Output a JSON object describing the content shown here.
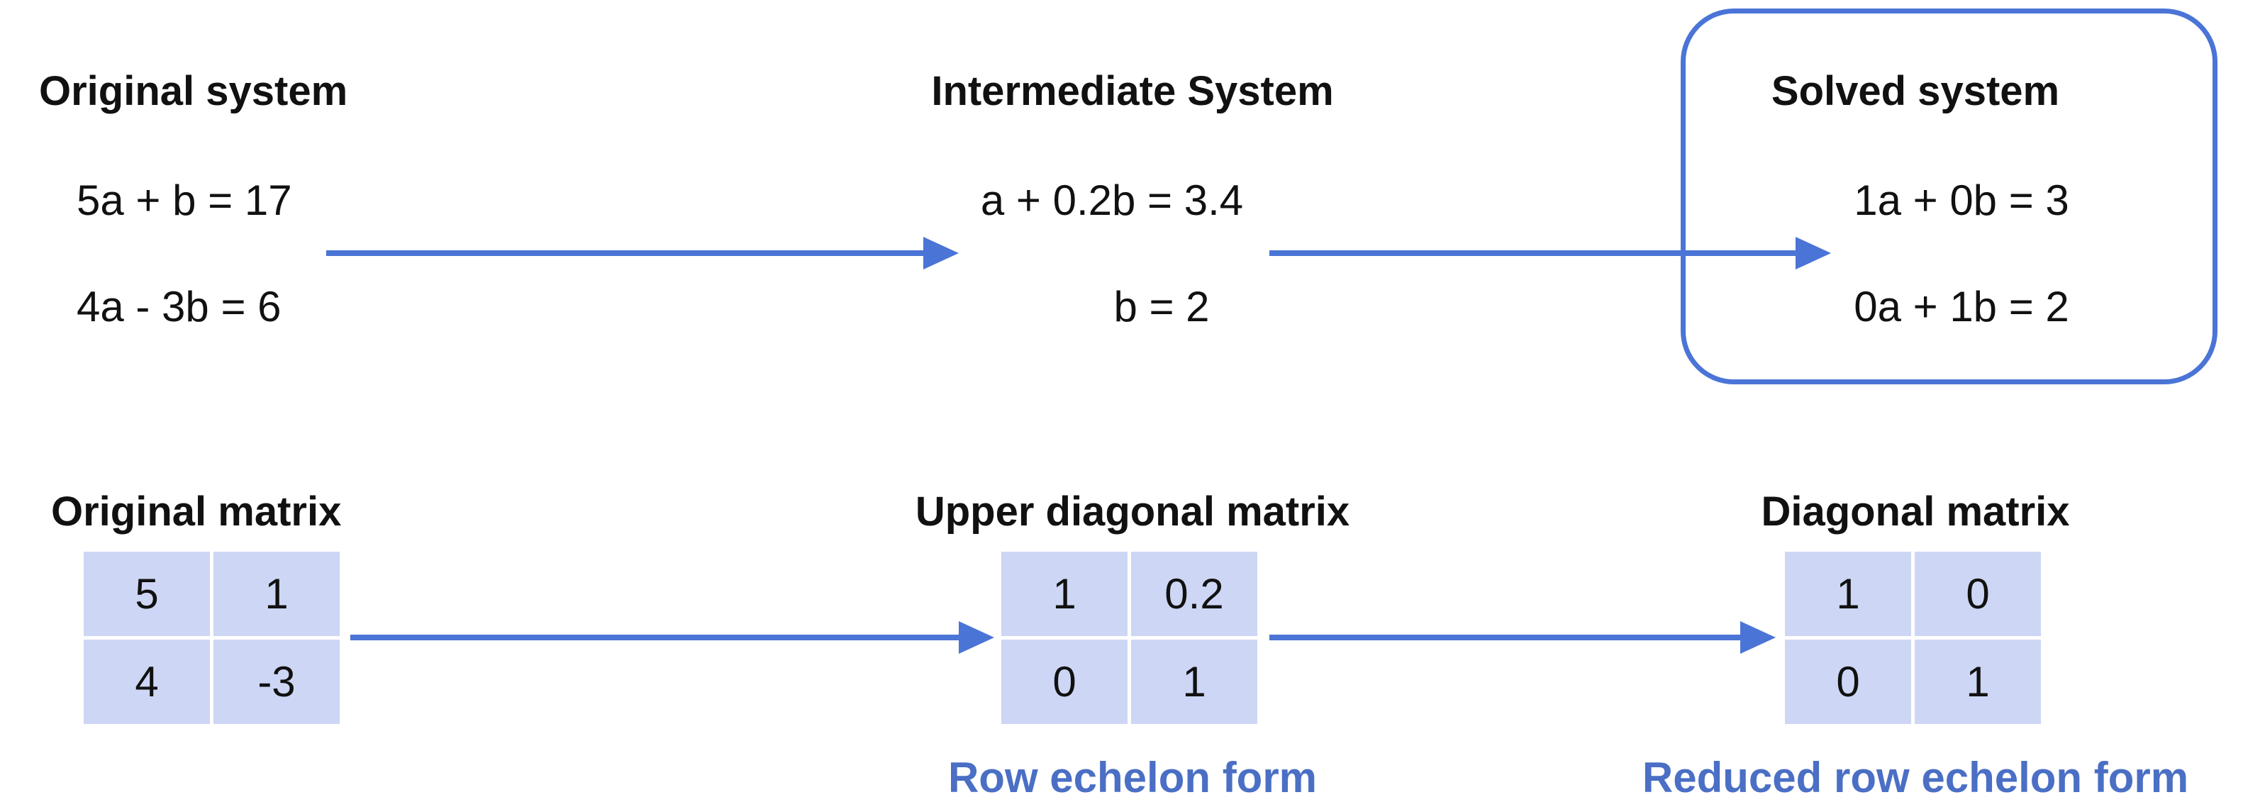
{
  "systems": {
    "original": {
      "title": "Original system",
      "eq1": "5a + b = 17",
      "eq2": "4a - 3b = 6"
    },
    "intermediate": {
      "title": "Intermediate System",
      "eq1": "a + 0.2b = 3.4",
      "eq2": "b = 2"
    },
    "solved": {
      "title": "Solved system",
      "eq1": "1a + 0b = 3",
      "eq2": "0a + 1b = 2"
    }
  },
  "matrices": {
    "original": {
      "title": "Original matrix",
      "cells": [
        "5",
        "1",
        "4",
        "-3"
      ]
    },
    "upper": {
      "title": "Upper diagonal matrix",
      "cells": [
        "1",
        "0.2",
        "0",
        "1"
      ],
      "caption": "Row echelon form"
    },
    "diagonal": {
      "title": "Diagonal matrix",
      "cells": [
        "1",
        "0",
        "0",
        "1"
      ],
      "caption": "Reduced row echelon form"
    }
  },
  "colors": {
    "arrow": "#4a74d6",
    "cell": "#cdd6f4",
    "caption": "#4a6fc4"
  }
}
